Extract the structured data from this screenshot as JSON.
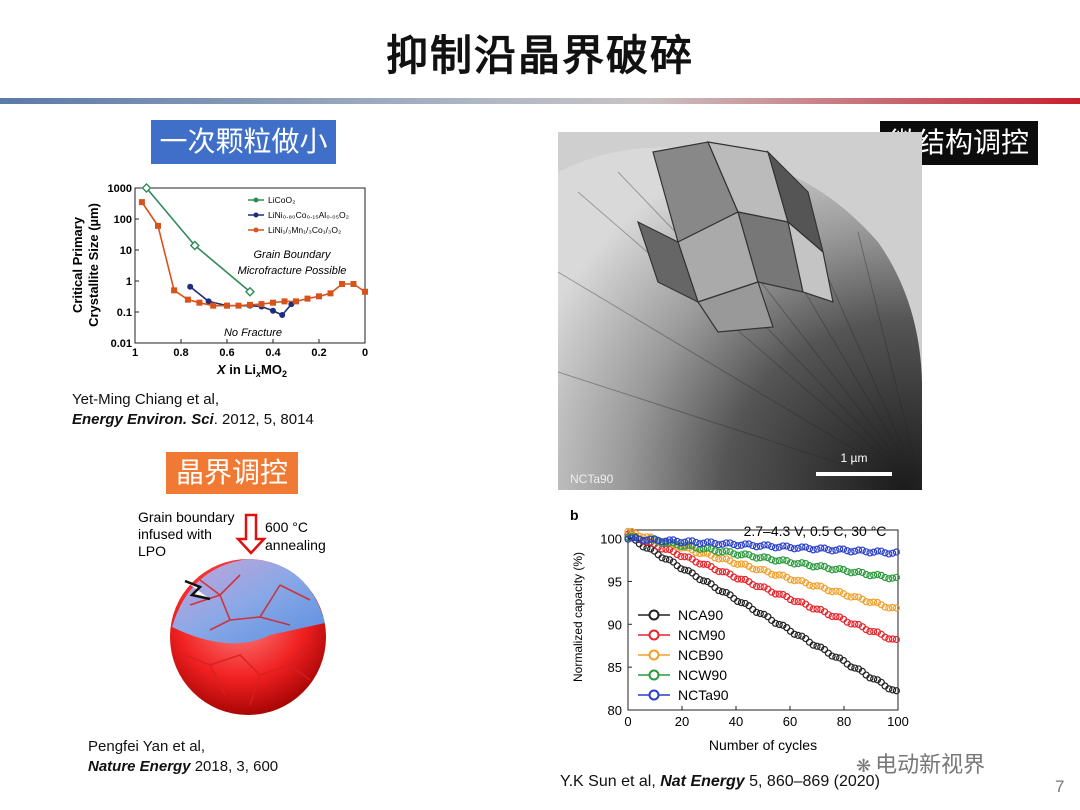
{
  "slide": {
    "title": "抑制沿晶界破碎",
    "page_number": "7",
    "watermark": "电动新视界"
  },
  "tags": {
    "left_top": "一次颗粒做小",
    "left_bottom": "晶界调控",
    "right_top": "微结构调控"
  },
  "citations": {
    "chiang_authors": "Yet-Ming Chiang et al,",
    "chiang_journal": "Energy Environ. Sci",
    "chiang_rest": ". 2012, 5, 8014",
    "yan_authors": "Pengfei Yan et al,",
    "yan_journal": "Nature Energy",
    "yan_rest": " 2018, 3, 600",
    "sun_prefix": "Y.K Sun et al, ",
    "sun_journal": "Nat Energy",
    "sun_rest": " 5, 860–869 (2020)"
  },
  "fig_grain": {
    "label_gb": [
      "Grain boundary",
      "infused with",
      "LPO"
    ],
    "label_anneal_1": "600 °C",
    "label_anneal_2": "annealing"
  },
  "fig_tem": {
    "corner_label": "NCTa90",
    "scale_label": "1 µm"
  },
  "chart_data": [
    {
      "type": "line",
      "ylabel": "Critical Primary Crystallite Size (µm)",
      "xlabel": "X in LixMO2",
      "x_reversed": true,
      "xlim": [
        0,
        1
      ],
      "ylim": [
        0.01,
        1000
      ],
      "yscale": "log",
      "xticks": [
        "1",
        "0.8",
        "0.6",
        "0.4",
        "0.2",
        "0"
      ],
      "yticks": [
        "1000",
        "100",
        "10",
        "1",
        "0.1",
        "0.01"
      ],
      "annotations": [
        "Grain Boundary",
        "Microfracture Possible",
        "No Fracture"
      ],
      "legend_position": "top-right",
      "series": [
        {
          "name": "LiCoO2",
          "color": "#2e8b57",
          "marker": "diamond-open",
          "points": [
            [
              0.95,
              1000
            ],
            [
              0.74,
              14
            ],
            [
              0.5,
              0.45
            ]
          ]
        },
        {
          "name": "LiNi0.80Co0.15Al0.05O2",
          "color": "#1d2d7a",
          "marker": "circle",
          "points": [
            [
              0.76,
              0.65
            ],
            [
              0.68,
              0.22
            ],
            [
              0.6,
              0.16
            ],
            [
              0.5,
              0.16
            ],
            [
              0.45,
              0.15
            ],
            [
              0.4,
              0.11
            ],
            [
              0.36,
              0.08
            ],
            [
              0.32,
              0.18
            ]
          ]
        },
        {
          "name": "LiNi1/3Mn1/3Co1/3O2",
          "color": "#d6541b",
          "marker": "square",
          "points": [
            [
              0.97,
              350
            ],
            [
              0.9,
              60
            ],
            [
              0.83,
              0.5
            ],
            [
              0.77,
              0.25
            ],
            [
              0.72,
              0.2
            ],
            [
              0.66,
              0.16
            ],
            [
              0.6,
              0.16
            ],
            [
              0.55,
              0.16
            ],
            [
              0.5,
              0.17
            ],
            [
              0.45,
              0.18
            ],
            [
              0.4,
              0.2
            ],
            [
              0.35,
              0.22
            ],
            [
              0.3,
              0.22
            ],
            [
              0.25,
              0.27
            ],
            [
              0.2,
              0.32
            ],
            [
              0.15,
              0.4
            ],
            [
              0.1,
              0.8
            ],
            [
              0.05,
              0.8
            ],
            [
              0.0,
              0.45
            ]
          ]
        }
      ]
    },
    {
      "type": "line",
      "panel_label": "b",
      "title": "2.7–4.3 V, 0.5 C, 30 °C",
      "xlabel": "Number of cycles",
      "ylabel": "Normalized capacity (%)",
      "xlim": [
        0,
        100
      ],
      "ylim": [
        80,
        100
      ],
      "xticks": [
        0,
        20,
        40,
        60,
        80,
        100
      ],
      "yticks": [
        80,
        85,
        90,
        95,
        100
      ],
      "legend_position": "bottom-left",
      "series": [
        {
          "name": "NCA90",
          "color": "#222222",
          "start": 100.2,
          "end": 82.0
        },
        {
          "name": "NCM90",
          "color": "#e8232a",
          "start": 100.5,
          "end": 88.0
        },
        {
          "name": "NCB90",
          "color": "#f29f2a",
          "start": 100.8,
          "end": 91.7
        },
        {
          "name": "NCW90",
          "color": "#2a9a3a",
          "start": 100.2,
          "end": 95.3
        },
        {
          "name": "NCTa90",
          "color": "#2a3fc9",
          "start": 100.0,
          "end": 98.3
        }
      ]
    }
  ]
}
